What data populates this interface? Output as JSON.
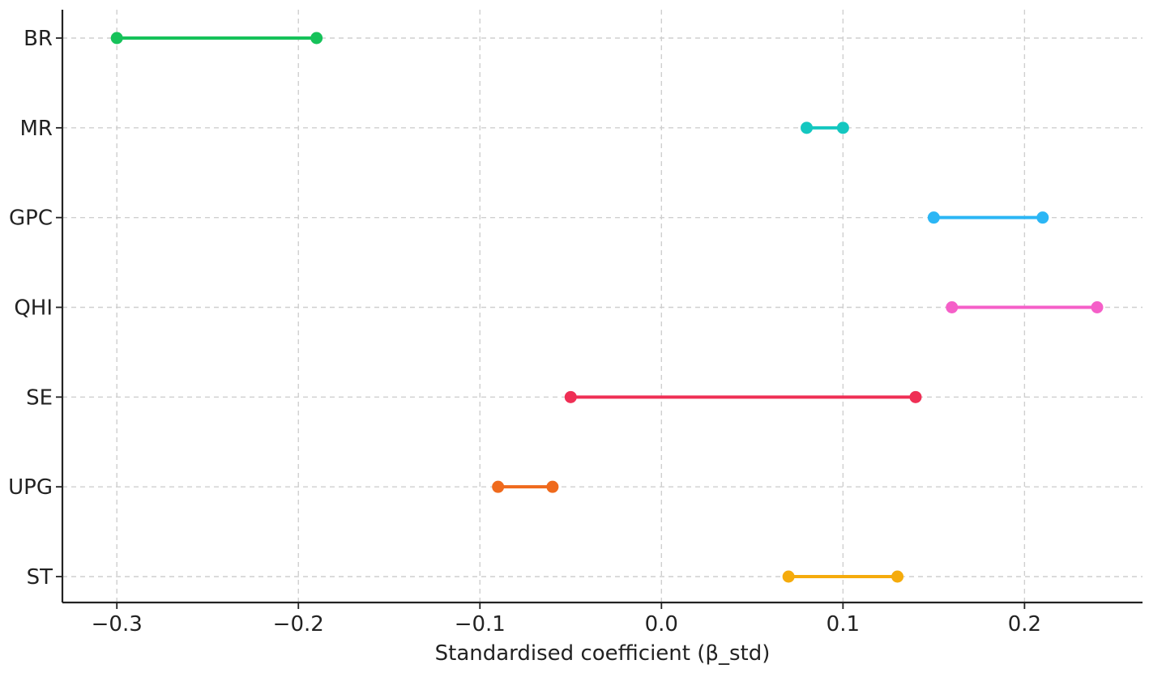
{
  "chart_data": {
    "type": "dumbbell",
    "title": "",
    "xlabel": "Standardised coefficient (β_std)",
    "ylabel": "",
    "xlim": [
      -0.33,
      0.265
    ],
    "xticks": [
      -0.3,
      -0.2,
      -0.1,
      0.0,
      0.1,
      0.2
    ],
    "xtick_labels": [
      "−0.3",
      "−0.2",
      "−0.1",
      "0.0",
      "0.1",
      "0.2"
    ],
    "grid": true,
    "legend": "none",
    "categories": [
      "BR",
      "MR",
      "GPC",
      "QHI",
      "SE",
      "UPG",
      "ST"
    ],
    "intervals": [
      {
        "label": "BR",
        "low": -0.3,
        "high": -0.19,
        "color": "#16c25a"
      },
      {
        "label": "MR",
        "low": 0.08,
        "high": 0.1,
        "color": "#14c7c0"
      },
      {
        "label": "GPC",
        "low": 0.15,
        "high": 0.21,
        "color": "#2bb6f5"
      },
      {
        "label": "QHI",
        "low": 0.16,
        "high": 0.24,
        "color": "#f55fc8"
      },
      {
        "label": "SE",
        "low": -0.05,
        "high": 0.14,
        "color": "#ef2f55"
      },
      {
        "label": "UPG",
        "low": -0.09,
        "high": -0.06,
        "color": "#ef6a1d"
      },
      {
        "label": "ST",
        "low": 0.07,
        "high": 0.13,
        "color": "#f5ab0c"
      }
    ]
  }
}
